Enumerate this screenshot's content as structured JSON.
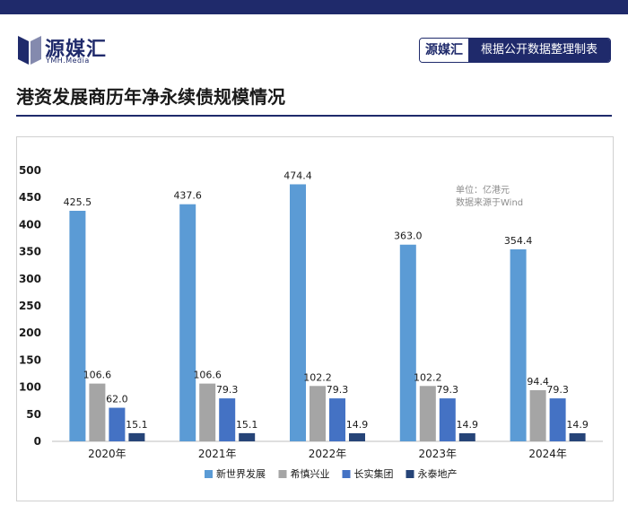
{
  "header": {
    "logo_text": "源媒汇",
    "logo_sub": "YMH.Media",
    "source_brand": "源媒汇",
    "source_desc": "根据公开数据整理制表"
  },
  "page_title": "港资发展商历年净永续债规模情况",
  "colors": {
    "brand": "#1f2a6b",
    "series": [
      "#5b9bd5",
      "#a5a5a5",
      "#4472c4",
      "#264478"
    ]
  },
  "chart_data": {
    "type": "bar",
    "title": "",
    "categories": [
      "2020年",
      "2021年",
      "2022年",
      "2023年",
      "2024年"
    ],
    "series": [
      {
        "name": "新世界发展",
        "values": [
          425.5,
          437.6,
          474.4,
          363.0,
          354.4
        ]
      },
      {
        "name": "希慎兴业",
        "values": [
          106.6,
          106.6,
          102.2,
          102.2,
          94.4
        ]
      },
      {
        "name": "长实集团",
        "values": [
          62.0,
          79.3,
          79.3,
          79.3,
          79.3
        ]
      },
      {
        "name": "永泰地产",
        "values": [
          15.1,
          15.1,
          14.9,
          14.9,
          14.9
        ]
      }
    ],
    "ylim": [
      0,
      500
    ],
    "yticks": [
      0,
      50,
      100,
      150,
      200,
      250,
      300,
      350,
      400,
      450,
      500
    ],
    "note_unit": "单位：亿港元",
    "note_source": "数据来源于Wind",
    "legend_position": "bottom",
    "grid": false
  }
}
